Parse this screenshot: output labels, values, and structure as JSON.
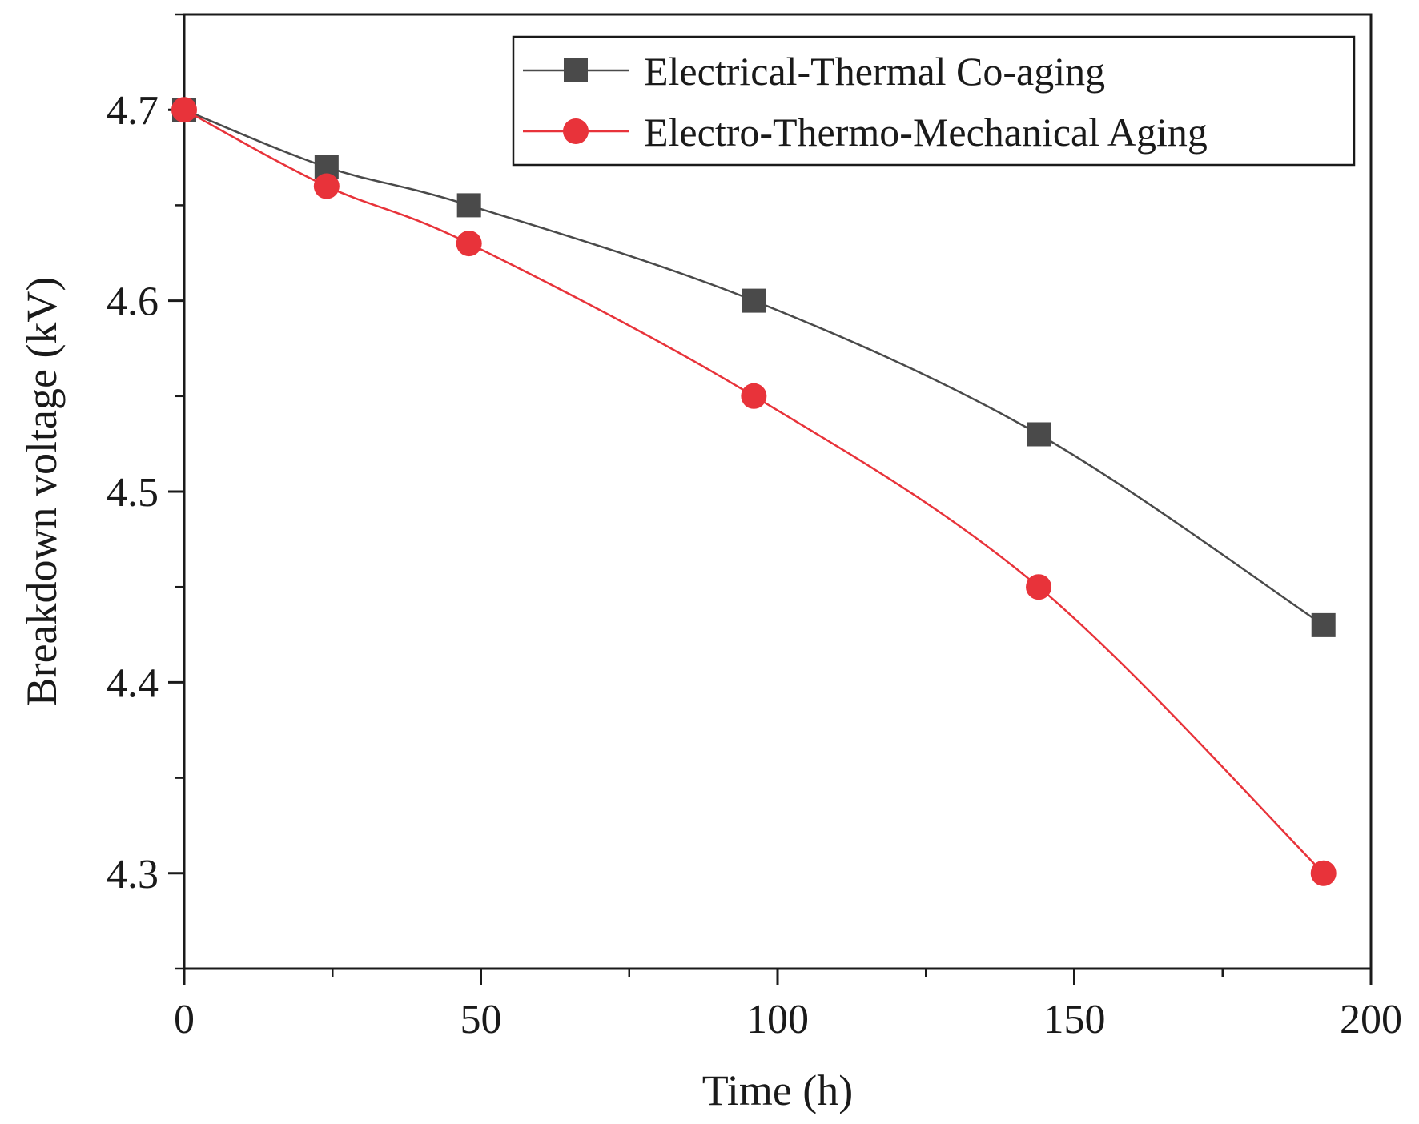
{
  "chart_data": {
    "type": "line",
    "title": "",
    "xlabel": "Time (h)",
    "ylabel": "Breakdown voltage (kV)",
    "xlim": [
      0,
      200
    ],
    "ylim": [
      4.25,
      4.75
    ],
    "xticks": [
      0,
      50,
      100,
      150,
      200
    ],
    "xtick_labels": [
      "0",
      "50",
      "100",
      "150",
      "200"
    ],
    "yticks": [
      4.3,
      4.4,
      4.5,
      4.6,
      4.7
    ],
    "ytick_labels": [
      "4.3",
      "4.4",
      "4.5",
      "4.6",
      "4.7"
    ],
    "x_minor_step": 25,
    "y_minor_step": 0.05,
    "grid": false,
    "legend_position": "top-right",
    "series": [
      {
        "name": "Electrical-Thermal Co-aging",
        "marker": "square",
        "color": "#4a4a4a",
        "x": [
          0,
          24,
          48,
          96,
          144,
          192
        ],
        "values": [
          4.7,
          4.67,
          4.65,
          4.6,
          4.53,
          4.43
        ]
      },
      {
        "name": "Electro-Thermo-Mechanical Aging",
        "marker": "circle",
        "color": "#e8333a",
        "x": [
          0,
          24,
          48,
          96,
          144,
          192
        ],
        "values": [
          4.7,
          4.66,
          4.63,
          4.55,
          4.45,
          4.3
        ]
      }
    ]
  }
}
